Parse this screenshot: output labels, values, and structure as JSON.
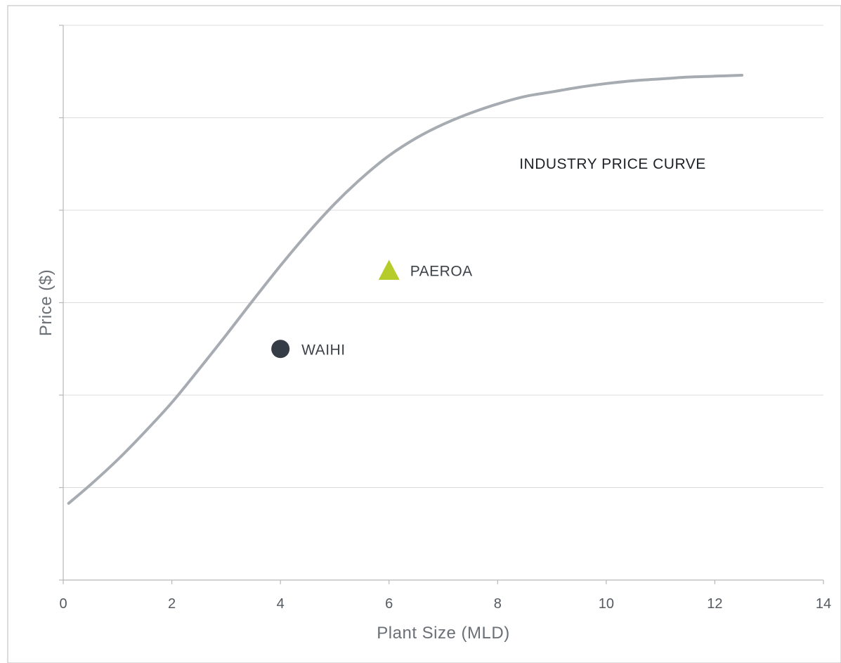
{
  "chart_data": {
    "type": "scatter",
    "title": "",
    "xlabel": "Plant Size (MLD)",
    "ylabel": "Price ($)",
    "xlim": [
      0,
      14
    ],
    "ylim": [
      0,
      6
    ],
    "x_ticks": [
      "0",
      "2",
      "4",
      "6",
      "8",
      "10",
      "12",
      "14"
    ],
    "y_gridlines": [
      1,
      2,
      3,
      4,
      5,
      6
    ],
    "y_tick_labels_shown": false,
    "grid": true,
    "legend": "none",
    "curve": {
      "label": "INDUSTRY PRICE CURVE",
      "color": "#a7acb2",
      "points": [
        [
          0.1,
          0.83
        ],
        [
          0.5,
          1.03
        ],
        [
          1.0,
          1.3
        ],
        [
          1.5,
          1.6
        ],
        [
          2.0,
          1.92
        ],
        [
          2.5,
          2.28
        ],
        [
          3.0,
          2.65
        ],
        [
          3.5,
          3.03
        ],
        [
          4.0,
          3.4
        ],
        [
          4.5,
          3.75
        ],
        [
          5.0,
          4.07
        ],
        [
          5.5,
          4.35
        ],
        [
          6.0,
          4.59
        ],
        [
          6.5,
          4.78
        ],
        [
          7.0,
          4.93
        ],
        [
          7.5,
          5.05
        ],
        [
          8.0,
          5.15
        ],
        [
          8.5,
          5.23
        ],
        [
          9.0,
          5.28
        ],
        [
          9.5,
          5.33
        ],
        [
          10.0,
          5.37
        ],
        [
          10.5,
          5.4
        ],
        [
          11.0,
          5.42
        ],
        [
          11.5,
          5.44
        ],
        [
          12.0,
          5.45
        ],
        [
          12.5,
          5.46
        ]
      ],
      "label_anchor": [
        8.4,
        4.45
      ]
    },
    "points": [
      {
        "label": "WAIHI",
        "x": 4.0,
        "y": 2.5,
        "marker": "circle",
        "color": "#363c45"
      },
      {
        "label": "PAEROA",
        "x": 6.0,
        "y": 3.35,
        "marker": "triangle",
        "color": "#b5cc2a"
      }
    ]
  }
}
